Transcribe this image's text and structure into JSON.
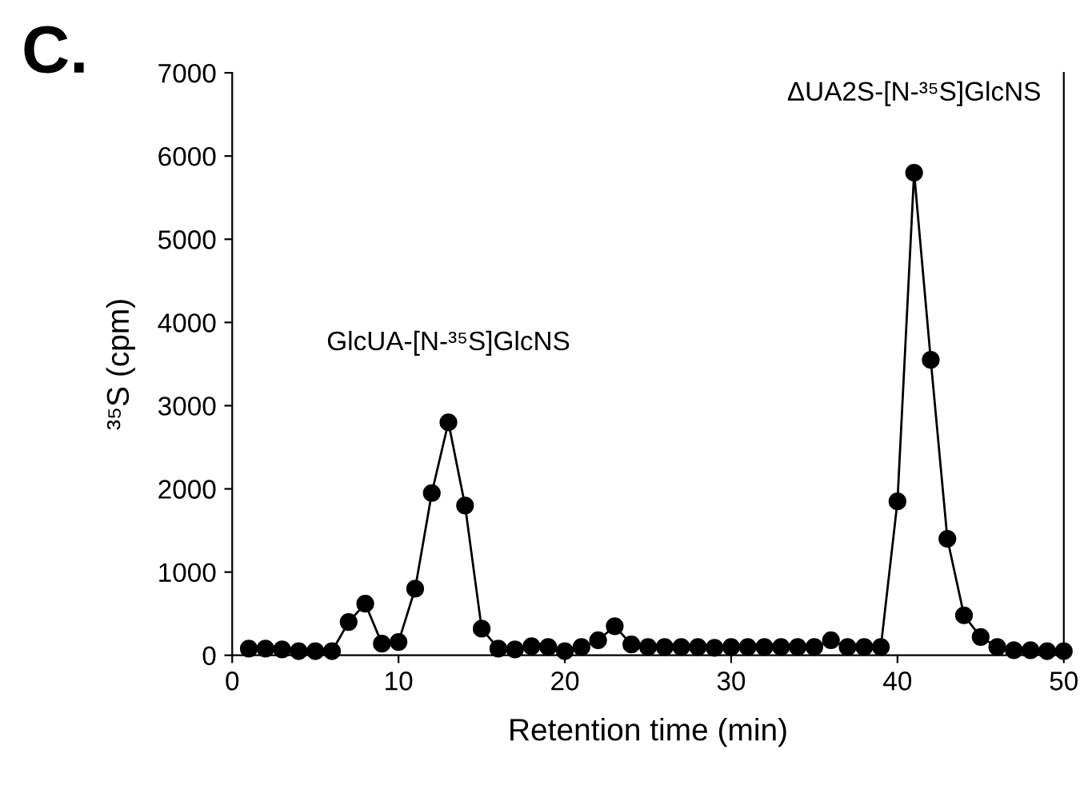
{
  "chart_data": {
    "type": "line",
    "title": "C.",
    "xlabel": "Retention time (min)",
    "ylabel": "³⁵S (cpm)",
    "x": [
      1,
      2,
      3,
      4,
      5,
      6,
      7,
      8,
      9,
      10,
      11,
      12,
      13,
      14,
      15,
      16,
      17,
      18,
      19,
      20,
      21,
      22,
      23,
      24,
      25,
      26,
      27,
      28,
      29,
      30,
      31,
      32,
      33,
      34,
      35,
      36,
      37,
      38,
      39,
      40,
      41,
      42,
      43,
      44,
      45,
      46,
      47,
      48,
      49,
      50
    ],
    "series": [
      {
        "color": "#000000",
        "values": [
          80,
          80,
          70,
          50,
          50,
          50,
          400,
          620,
          140,
          160,
          800,
          1950,
          2800,
          1800,
          320,
          80,
          70,
          110,
          100,
          50,
          100,
          180,
          350,
          130,
          100,
          100,
          100,
          100,
          90,
          100,
          100,
          100,
          100,
          100,
          100,
          180,
          100,
          100,
          100,
          1850,
          5800,
          3550,
          1400,
          480,
          220,
          100,
          60,
          60,
          50,
          50
        ]
      }
    ],
    "annotations": [
      {
        "text": "GlcUA-[N-³⁵S]GlcNS",
        "x": 13,
        "y": 2800
      },
      {
        "text": "ΔUA2S-[N-³⁵S]GlcNS",
        "x": 41,
        "y": 5800
      }
    ],
    "xlim": [
      0,
      50
    ],
    "xticks": [
      0,
      10,
      20,
      30,
      40,
      50
    ],
    "ylim": [
      0,
      7000
    ],
    "yticks": [
      0,
      1000,
      2000,
      3000,
      4000,
      5000,
      6000,
      7000
    ],
    "marker": "circle",
    "line_style": "solid",
    "grid": false,
    "legend": false
  }
}
